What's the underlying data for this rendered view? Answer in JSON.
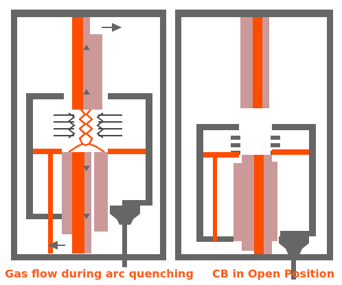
{
  "panels": [
    {
      "id": "arc-quenching",
      "caption": "Gas flow during arc quenching"
    },
    {
      "id": "open-position",
      "caption": "CB in Open Position"
    }
  ],
  "colors": {
    "enclosure": "#666666",
    "conductor": "#FF4D00",
    "contact": "#CC9999",
    "arrow": "#666666",
    "caption": "#FF5A1A",
    "background": "#FFFFFF"
  },
  "icons": [
    "gas-flow-arrow",
    "arc-zigzag"
  ]
}
